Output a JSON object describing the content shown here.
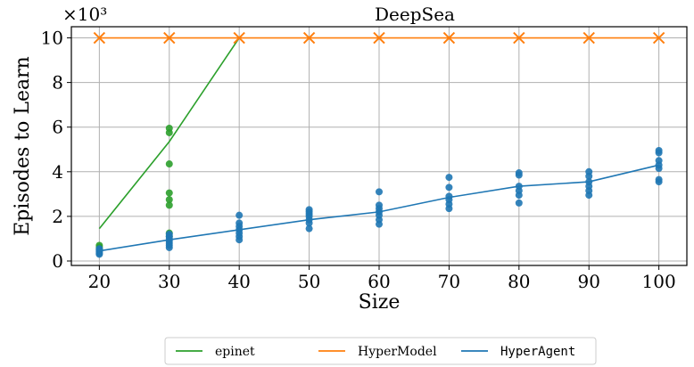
{
  "chart_data": {
    "type": "line",
    "title": "DeepSea",
    "xlabel": "Size",
    "ylabel": "Episodes to Learn",
    "y_multiplier_label": "×10³",
    "x_ticks": [
      20,
      30,
      40,
      50,
      60,
      70,
      80,
      90,
      100
    ],
    "y_ticks": [
      0,
      2,
      4,
      6,
      8,
      10
    ],
    "xlim": [
      16,
      104
    ],
    "ylim": [
      -0.2,
      10.5
    ],
    "grid": true,
    "legend_position": "bottom-center",
    "series": [
      {
        "name": "epinet",
        "color": "#2ca02c",
        "style": "line",
        "x": [
          20,
          30,
          40
        ],
        "y": [
          1.45,
          5.35,
          10.0
        ],
        "points": [
          [
            20,
            0.55
          ],
          [
            20,
            0.62
          ],
          [
            20,
            0.7
          ],
          [
            30,
            1.1
          ],
          [
            30,
            1.25
          ],
          [
            30,
            2.5
          ],
          [
            30,
            2.75
          ],
          [
            30,
            3.05
          ],
          [
            30,
            4.35
          ],
          [
            30,
            5.75
          ],
          [
            30,
            5.95
          ]
        ]
      },
      {
        "name": "HyperModel",
        "color": "#ff7f0e",
        "style": "line-x",
        "x": [
          20,
          30,
          40,
          50,
          60,
          70,
          80,
          90,
          100
        ],
        "y": [
          10.0,
          10.0,
          10.0,
          10.0,
          10.0,
          10.0,
          10.0,
          10.0,
          10.0
        ]
      },
      {
        "name": "HyperAgent",
        "color": "#1f77b4",
        "style": "line",
        "mono": true,
        "x": [
          20,
          30,
          40,
          50,
          60,
          70,
          80,
          90,
          100
        ],
        "y": [
          0.45,
          0.95,
          1.4,
          1.85,
          2.2,
          2.85,
          3.35,
          3.55,
          4.3
        ],
        "points": [
          [
            20,
            0.3
          ],
          [
            20,
            0.35
          ],
          [
            20,
            0.4
          ],
          [
            20,
            0.45
          ],
          [
            20,
            0.5
          ],
          [
            20,
            0.55
          ],
          [
            30,
            0.6
          ],
          [
            30,
            0.7
          ],
          [
            30,
            0.8
          ],
          [
            30,
            0.9
          ],
          [
            30,
            1.0
          ],
          [
            30,
            1.1
          ],
          [
            30,
            1.2
          ],
          [
            40,
            0.95
          ],
          [
            40,
            1.1
          ],
          [
            40,
            1.25
          ],
          [
            40,
            1.4
          ],
          [
            40,
            1.55
          ],
          [
            40,
            1.7
          ],
          [
            40,
            2.05
          ],
          [
            50,
            1.45
          ],
          [
            50,
            1.7
          ],
          [
            50,
            1.85
          ],
          [
            50,
            2.0
          ],
          [
            50,
            2.1
          ],
          [
            50,
            2.2
          ],
          [
            50,
            2.3
          ],
          [
            60,
            1.65
          ],
          [
            60,
            1.85
          ],
          [
            60,
            2.05
          ],
          [
            60,
            2.2
          ],
          [
            60,
            2.35
          ],
          [
            60,
            2.5
          ],
          [
            60,
            3.1
          ],
          [
            70,
            2.35
          ],
          [
            70,
            2.55
          ],
          [
            70,
            2.75
          ],
          [
            70,
            2.9
          ],
          [
            70,
            3.3
          ],
          [
            70,
            3.75
          ],
          [
            80,
            2.6
          ],
          [
            80,
            2.95
          ],
          [
            80,
            3.15
          ],
          [
            80,
            3.35
          ],
          [
            80,
            3.85
          ],
          [
            80,
            3.95
          ],
          [
            90,
            2.95
          ],
          [
            90,
            3.15
          ],
          [
            90,
            3.35
          ],
          [
            90,
            3.55
          ],
          [
            90,
            3.8
          ],
          [
            90,
            4.0
          ],
          [
            100,
            3.55
          ],
          [
            100,
            3.65
          ],
          [
            100,
            4.15
          ],
          [
            100,
            4.3
          ],
          [
            100,
            4.5
          ],
          [
            100,
            4.85
          ],
          [
            100,
            4.95
          ]
        ]
      }
    ]
  }
}
